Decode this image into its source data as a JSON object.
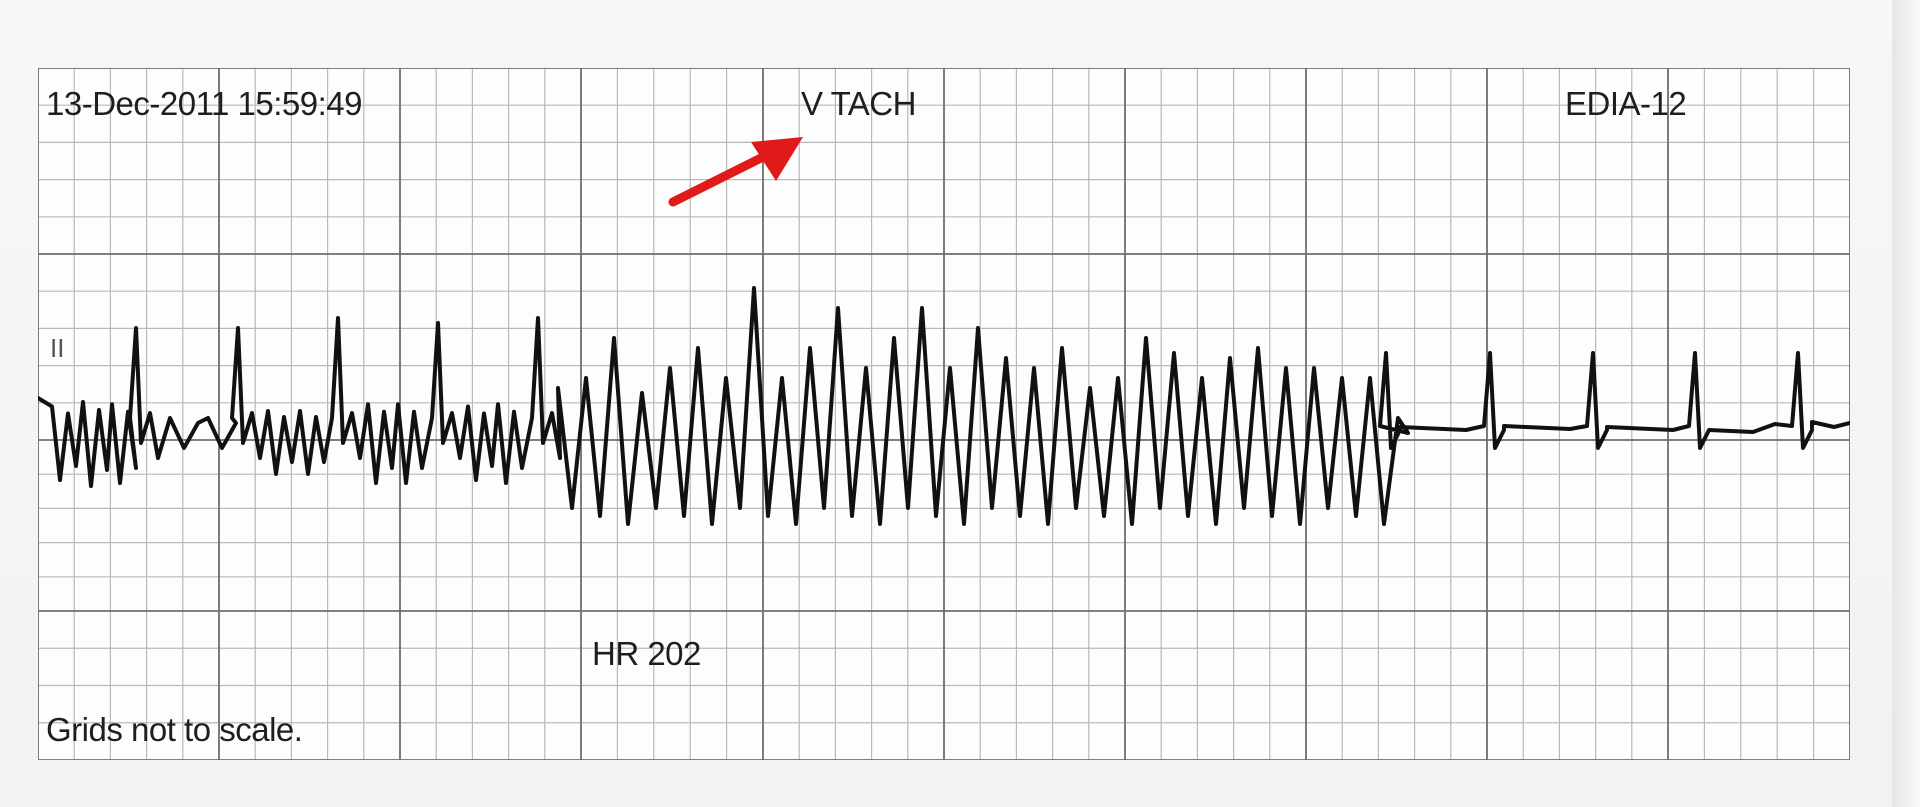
{
  "strip": {
    "timestamp": "13-Dec-2011 15:59:49",
    "rhythm_label": "V TACH",
    "device_label": "EDIA-12",
    "lead_label": "II",
    "heart_rate": "HR 202",
    "footnote": "Grids not to scale."
  },
  "colors": {
    "trace": "#111111",
    "grid_major": "#6e6e6e",
    "grid_minor": "#b9b9b9",
    "arrow": "#e01919"
  },
  "icons": {
    "arrow": "red-arrow-pointing-to-rhythm-label"
  }
}
